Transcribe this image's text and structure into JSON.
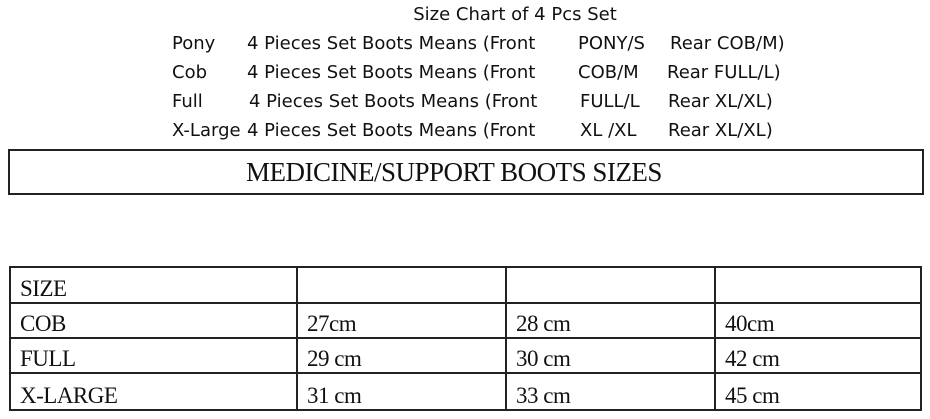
{
  "header": {
    "title": "Size Chart of 4 Pcs Set",
    "rows": [
      {
        "name": "Pony",
        "desc": "4 Pieces Set Boots Means (Front",
        "front": "PONY/S",
        "rear": "Rear COB/M)"
      },
      {
        "name": "Cob",
        "desc": "4 Pieces Set Boots Means (Front",
        "front": "COB/M",
        "rear": "Rear FULL/L)"
      },
      {
        "name": "Full",
        "desc": "4 Pieces Set Boots Means (Front",
        "front": "FULL/L",
        "rear": "Rear XL/XL)"
      },
      {
        "name": "X-Large",
        "desc": "4 Pieces Set Boots Means (Front",
        "front": "XL /XL",
        "rear": "Rear XL/XL)"
      }
    ]
  },
  "banner": {
    "title": "MEDICINE/SUPPORT BOOTS SIZES"
  },
  "table": {
    "header": [
      "SIZE",
      "",
      "",
      ""
    ],
    "rows": [
      [
        "COB",
        "27cm",
        "28 cm",
        "40cm"
      ],
      [
        "FULL",
        "29 cm",
        "30 cm",
        "42 cm"
      ],
      [
        "X-LARGE",
        "31 cm",
        "33 cm",
        "45 cm"
      ]
    ]
  }
}
